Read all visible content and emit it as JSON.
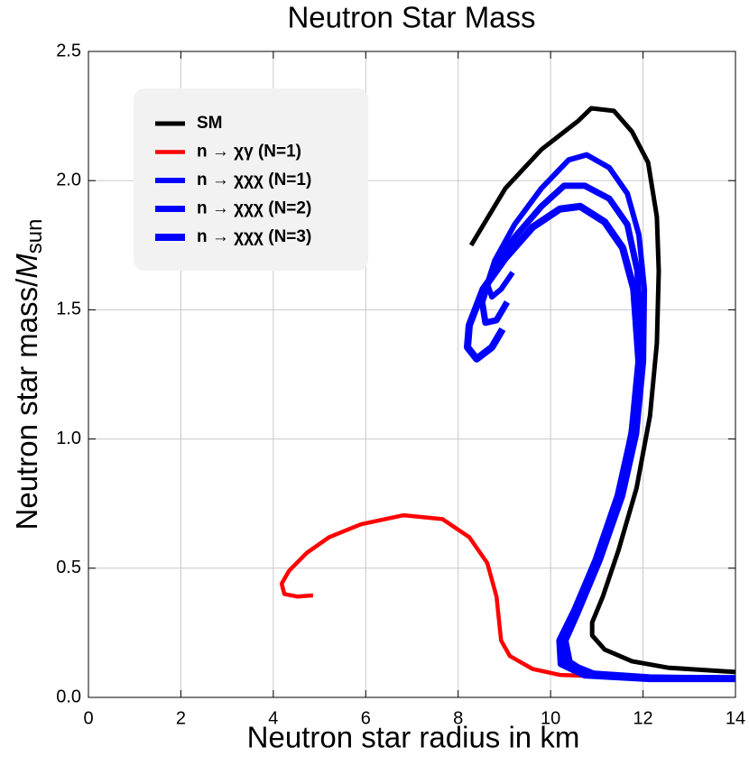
{
  "chart_data": {
    "type": "line",
    "title": "Neutron Star Mass",
    "xlabel": "Neutron star radius in km",
    "ylabel": {
      "text": "Neutron star mass/",
      "italic": "M",
      "sub": "sun"
    },
    "xlim": [
      0,
      14
    ],
    "xticks": [
      0,
      2,
      4,
      6,
      8,
      10,
      12,
      14
    ],
    "ylim": [
      0,
      2.5
    ],
    "yticks": [
      {
        "value": 0,
        "label": "0.0"
      },
      {
        "value": 0.5,
        "label": "0.5"
      },
      {
        "value": 1,
        "label": "1.0"
      },
      {
        "value": 1.5,
        "label": "1.5"
      },
      {
        "value": 2,
        "label": "2.0"
      },
      {
        "value": 2.5,
        "label": "2.5"
      }
    ],
    "grid": true,
    "legend": "upper left",
    "series": [
      {
        "name": "SM",
        "color": "#000000",
        "width": 5,
        "x": [
          8.28,
          9.02,
          9.8,
          10.59,
          10.88,
          11.37,
          11.76,
          12.11,
          12.3,
          12.34,
          12.3,
          12.15,
          11.86,
          11.47,
          11.13,
          10.9,
          10.9,
          11.17,
          11.76,
          12.54,
          14
        ],
        "values": [
          1.75,
          1.97,
          2.12,
          2.23,
          2.28,
          2.27,
          2.19,
          2.07,
          1.86,
          1.65,
          1.37,
          1.09,
          0.81,
          0.57,
          0.39,
          0.29,
          0.24,
          0.185,
          0.14,
          0.115,
          0.098
        ]
      },
      {
        "name": "n → χγ (N=1)",
        "color": "#ff0000",
        "width": 4.5,
        "x": [
          4.86,
          4.53,
          4.24,
          4.18,
          4.34,
          4.73,
          5.21,
          5.9,
          6.82,
          7.66,
          8.24,
          8.63,
          8.83,
          8.93,
          9.12,
          9.61,
          10.2,
          11.76,
          14
        ],
        "values": [
          0.395,
          0.39,
          0.4,
          0.44,
          0.49,
          0.56,
          0.62,
          0.67,
          0.705,
          0.69,
          0.62,
          0.52,
          0.39,
          0.22,
          0.16,
          0.11,
          0.087,
          0.077,
          0.073
        ]
      },
      {
        "name": "n → χχχ (N=1)",
        "color": "#0000ff",
        "width": 6,
        "x": [
          9.18,
          8.93,
          8.73,
          8.63,
          8.79,
          9.22,
          9.8,
          10.39,
          10.78,
          11.27,
          11.66,
          11.91,
          12.03,
          12.01,
          11.86,
          11.56,
          11.07,
          10.59,
          10.33,
          10.43,
          10.98,
          12.15,
          14
        ],
        "values": [
          1.645,
          1.58,
          1.55,
          1.6,
          1.69,
          1.83,
          1.97,
          2.08,
          2.1,
          2.05,
          1.95,
          1.79,
          1.58,
          1.3,
          1.02,
          0.78,
          0.53,
          0.325,
          0.22,
          0.13,
          0.09,
          0.077,
          0.073
        ]
      },
      {
        "name": "n → χχχ (N=2)",
        "color": "#0000ff",
        "width": 7,
        "x": [
          9.06,
          8.83,
          8.59,
          8.52,
          8.73,
          9.22,
          9.8,
          10.29,
          10.74,
          11.27,
          11.66,
          11.88,
          11.95,
          11.82,
          11.52,
          11.07,
          10.59,
          10.28,
          10.3,
          10.78,
          12.15,
          14
        ],
        "values": [
          1.53,
          1.46,
          1.45,
          1.53,
          1.65,
          1.78,
          1.9,
          1.98,
          1.98,
          1.93,
          1.83,
          1.65,
          1.37,
          1.09,
          0.81,
          0.57,
          0.36,
          0.24,
          0.15,
          0.094,
          0.077,
          0.073
        ]
      },
      {
        "name": "n → χχχ (N=3)",
        "color": "#0000ff",
        "width": 8,
        "x": [
          8.96,
          8.73,
          8.4,
          8.2,
          8.24,
          8.54,
          9.02,
          9.61,
          10.2,
          10.64,
          11.17,
          11.56,
          11.8,
          11.91,
          11.76,
          11.46,
          10.98,
          10.53,
          10.2,
          10.23,
          10.74,
          12.15,
          14
        ],
        "values": [
          1.425,
          1.355,
          1.31,
          1.355,
          1.44,
          1.58,
          1.7,
          1.82,
          1.89,
          1.9,
          1.84,
          1.74,
          1.58,
          1.3,
          1.02,
          0.78,
          0.53,
          0.34,
          0.22,
          0.13,
          0.087,
          0.073,
          0.073
        ]
      }
    ]
  }
}
